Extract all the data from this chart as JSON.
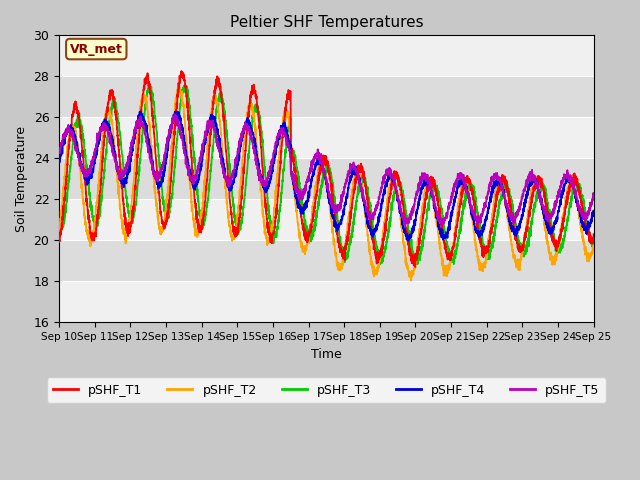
{
  "title": "Peltier SHF Temperatures",
  "xlabel": "Time",
  "ylabel": "Soil Temperature",
  "ylim": [
    16,
    30
  ],
  "xlim": [
    0,
    15
  ],
  "yticks": [
    16,
    18,
    20,
    22,
    24,
    26,
    28,
    30
  ],
  "xtick_labels": [
    "Sep 10",
    "Sep 11",
    "Sep 12",
    "Sep 13",
    "Sep 14",
    "Sep 15",
    "Sep 16",
    "Sep 17",
    "Sep 18",
    "Sep 19",
    "Sep 20",
    "Sep 21",
    "Sep 22",
    "Sep 23",
    "Sep 24",
    "Sep 25"
  ],
  "colors": {
    "T1": "#ff0000",
    "T2": "#ffa500",
    "T3": "#00cc00",
    "T4": "#0000dd",
    "T5": "#bb00bb"
  },
  "legend_labels": [
    "pSHF_T1",
    "pSHF_T2",
    "pSHF_T3",
    "pSHF_T4",
    "pSHF_T5"
  ],
  "annotation_text": "VR_met",
  "fig_bg": "#c8c8c8",
  "plot_bg": "#e8e8e8",
  "band_light": "#f0f0f0",
  "band_dark": "#dcdcdc"
}
